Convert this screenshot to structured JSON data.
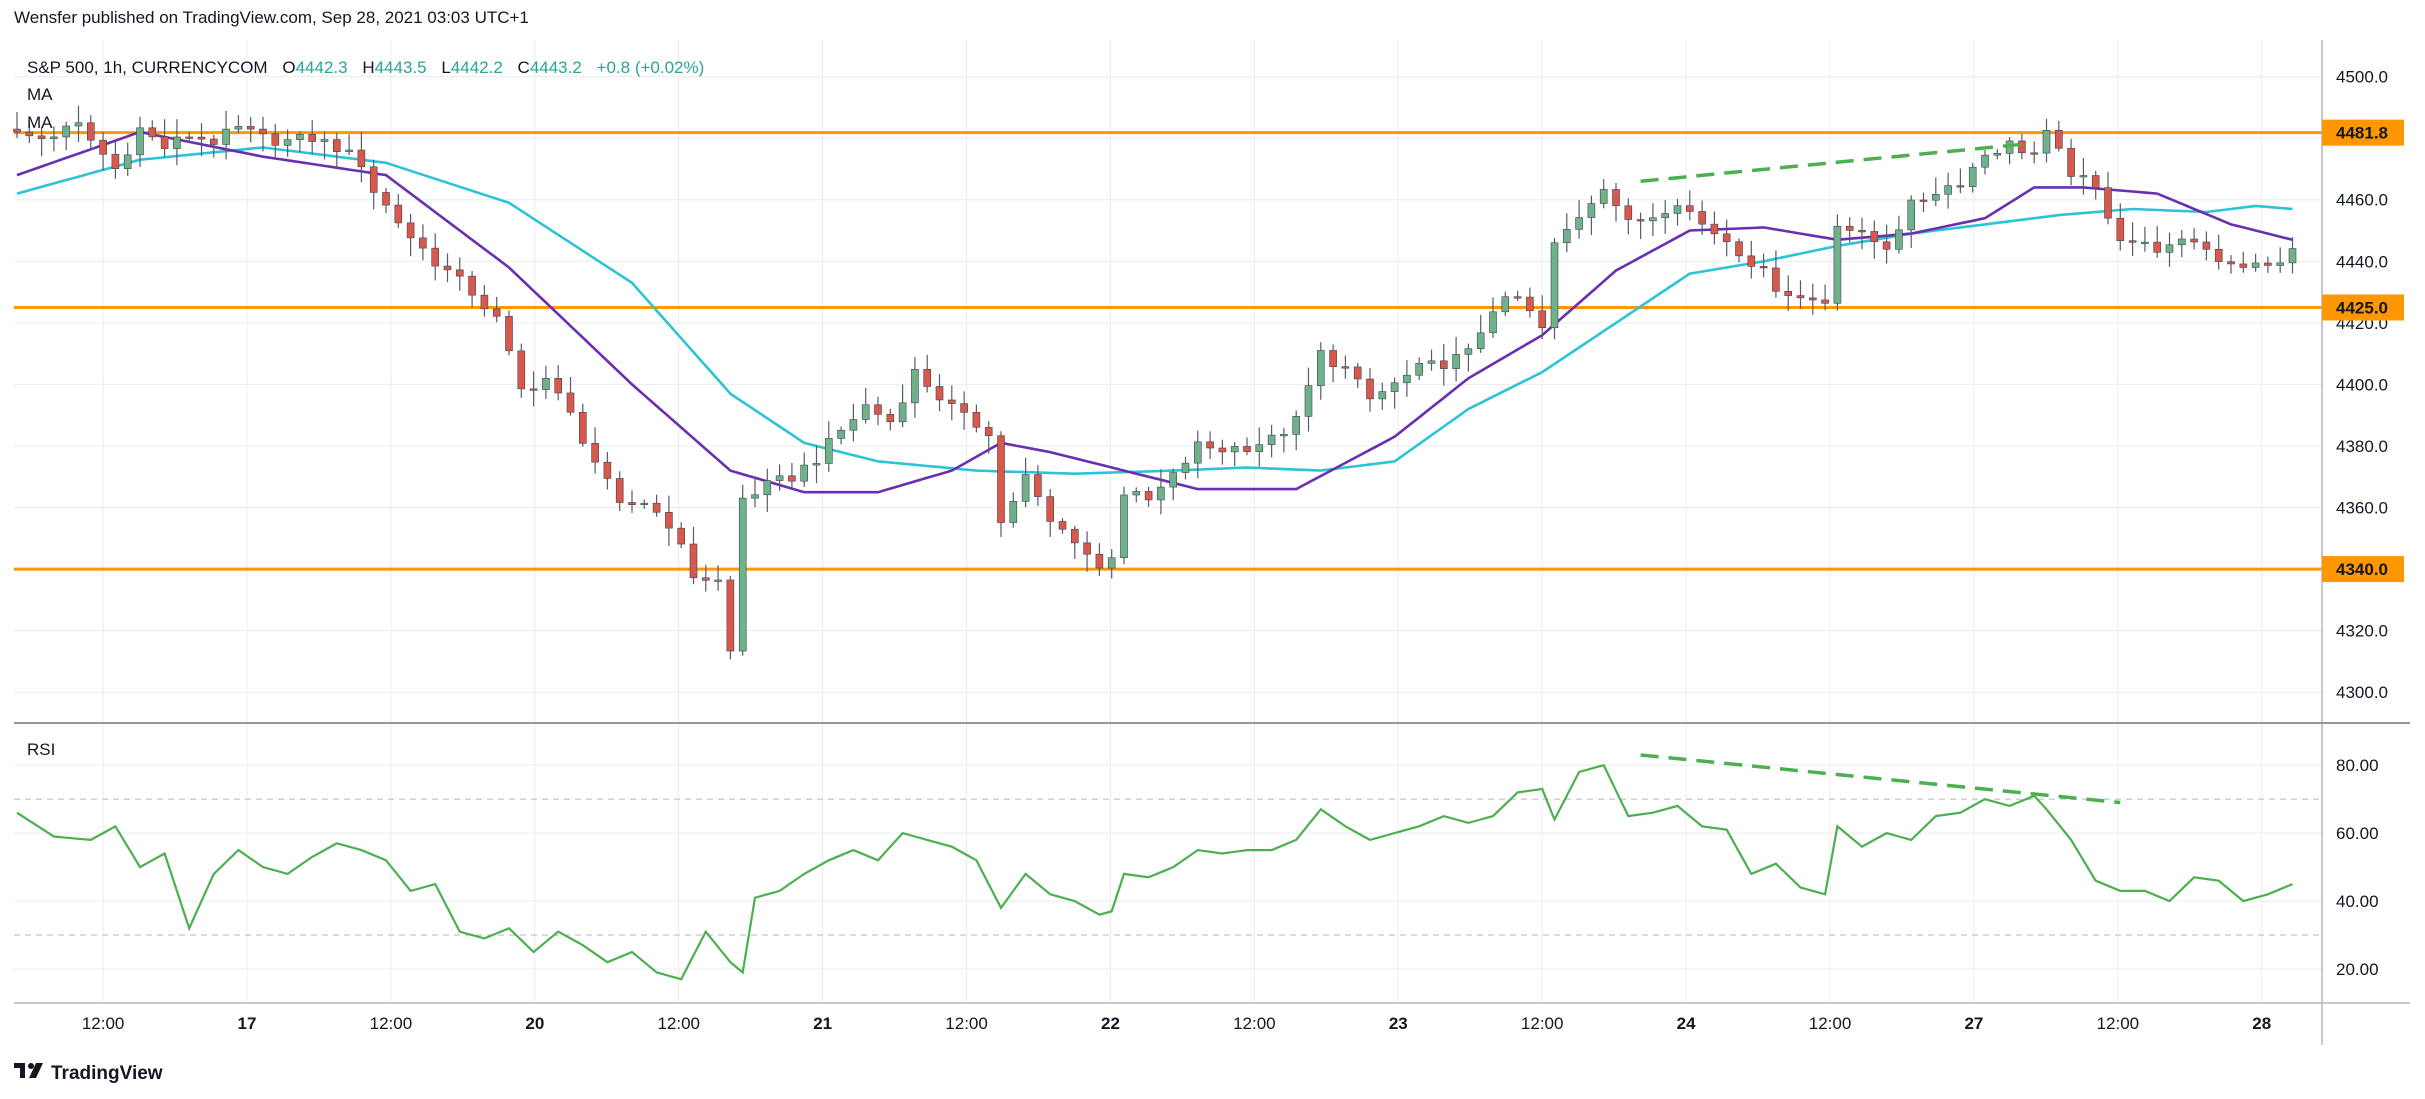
{
  "publisher_line": "Wensfer published on TradingView.com, Sep 28, 2021 03:03 UTC+1",
  "footer_brand": "TradingView",
  "header": {
    "symbol": "S&P 500, 1h, CURRENCYCOM",
    "o_label": "O",
    "o": "4442.3",
    "h_label": "H",
    "h": "4443.5",
    "l_label": "L",
    "l": "4442.2",
    "c_label": "C",
    "c": "4443.2",
    "change": "+0.8 (+0.02%)",
    "ma1": "MA",
    "ma2": "MA"
  },
  "rsi_label": "RSI",
  "colors": {
    "up": "#6fb28a",
    "down": "#d9584c",
    "wick": "#555c6a",
    "ma_fast": "#6a2fb0",
    "ma_slow": "#2cc3d6",
    "rsi": "#4caf50",
    "trend_dashed": "#4caf50",
    "level": "#ff9800",
    "grid": "#ececec"
  },
  "chart_data": [
    {
      "type": "candlestick",
      "symbol": "S&P 500, 1h, CURRENCYCOM",
      "x_tick_labels": [
        "12:00",
        "17",
        "12:00",
        "20",
        "12:00",
        "21",
        "12:00",
        "22",
        "12:00",
        "23",
        "12:00",
        "24",
        "12:00",
        "27",
        "12:00",
        "28"
      ],
      "bold_x_labels": [
        "17",
        "20",
        "21",
        "22",
        "23",
        "24",
        "27",
        "28"
      ],
      "y_tick_labels": [
        "4500.0",
        "4480.0",
        "4460.0",
        "4440.0",
        "4420.0",
        "4400.0",
        "4380.0",
        "4360.0",
        "4340.0",
        "4320.0",
        "4300.0"
      ],
      "ylim": [
        4290,
        4508
      ],
      "horizontal_levels": [
        {
          "value": 4481.8,
          "label": "4481.8"
        },
        {
          "value": 4425.0,
          "label": "4425.0"
        },
        {
          "value": 4340.0,
          "label": "4340.0"
        }
      ],
      "anchors": [
        [
          0,
          4481
        ],
        [
          2,
          4480
        ],
        [
          5,
          4484
        ],
        [
          8,
          4470
        ],
        [
          10,
          4483
        ],
        [
          12,
          4477
        ],
        [
          14,
          4481
        ],
        [
          16,
          4479
        ],
        [
          18,
          4483
        ],
        [
          20,
          4480
        ],
        [
          22,
          4479
        ],
        [
          24,
          4480
        ],
        [
          26,
          4477
        ],
        [
          28,
          4472
        ],
        [
          29,
          4463
        ],
        [
          32,
          4448
        ],
        [
          34,
          4440
        ],
        [
          37,
          4430
        ],
        [
          39,
          4421
        ],
        [
          41,
          4398
        ],
        [
          43,
          4402
        ],
        [
          45,
          4390
        ],
        [
          47,
          4375
        ],
        [
          49,
          4360
        ],
        [
          51,
          4362
        ],
        [
          53,
          4355
        ],
        [
          55,
          4338
        ],
        [
          57,
          4336
        ],
        [
          58,
          4313
        ],
        [
          59,
          4363
        ],
        [
          61,
          4367
        ],
        [
          63,
          4370
        ],
        [
          65,
          4376
        ],
        [
          67,
          4385
        ],
        [
          69,
          4393
        ],
        [
          71,
          4388
        ],
        [
          73,
          4404
        ],
        [
          75,
          4396
        ],
        [
          77,
          4389
        ],
        [
          79,
          4385
        ],
        [
          80,
          4355
        ],
        [
          82,
          4370
        ],
        [
          84,
          4355
        ],
        [
          86,
          4350
        ],
        [
          88,
          4340
        ],
        [
          89,
          4345
        ],
        [
          90,
          4365
        ],
        [
          92,
          4362
        ],
        [
          94,
          4370
        ],
        [
          96,
          4380
        ],
        [
          98,
          4379
        ],
        [
          100,
          4380
        ],
        [
          102,
          4382
        ],
        [
          104,
          4388
        ],
        [
          106,
          4410
        ],
        [
          108,
          4405
        ],
        [
          110,
          4395
        ],
        [
          112,
          4400
        ],
        [
          114,
          4405
        ],
        [
          116,
          4407
        ],
        [
          118,
          4410
        ],
        [
          120,
          4425
        ],
        [
          122,
          4428
        ],
        [
          124,
          4418
        ],
        [
          125,
          4445
        ],
        [
          127,
          4455
        ],
        [
          129,
          4465
        ],
        [
          131,
          4452
        ],
        [
          133,
          4455
        ],
        [
          135,
          4460
        ],
        [
          137,
          4452
        ],
        [
          139,
          4447
        ],
        [
          141,
          4440
        ],
        [
          143,
          4432
        ],
        [
          145,
          4428
        ],
        [
          147,
          4427
        ],
        [
          148,
          4453
        ],
        [
          150,
          4448
        ],
        [
          152,
          4445
        ],
        [
          154,
          4458
        ],
        [
          156,
          4463
        ],
        [
          158,
          4466
        ],
        [
          160,
          4475
        ],
        [
          162,
          4478
        ],
        [
          164,
          4475
        ],
        [
          165,
          4481
        ],
        [
          167,
          4469
        ],
        [
          169,
          4463
        ],
        [
          171,
          4448
        ],
        [
          173,
          4445
        ],
        [
          175,
          4444
        ],
        [
          177,
          4447
        ],
        [
          179,
          4441
        ],
        [
          181,
          4439
        ],
        [
          183,
          4438
        ],
        [
          185,
          4443
        ]
      ],
      "ma_fast": {
        "name": "MA",
        "values": [
          [
            0,
            4468
          ],
          [
            10,
            4482
          ],
          [
            20,
            4474
          ],
          [
            30,
            4468
          ],
          [
            40,
            4438
          ],
          [
            50,
            4400
          ],
          [
            58,
            4372
          ],
          [
            64,
            4365
          ],
          [
            70,
            4365
          ],
          [
            76,
            4372
          ],
          [
            80,
            4381
          ],
          [
            84,
            4378
          ],
          [
            90,
            4372
          ],
          [
            96,
            4366
          ],
          [
            104,
            4366
          ],
          [
            112,
            4383
          ],
          [
            118,
            4402
          ],
          [
            124,
            4416
          ],
          [
            130,
            4437
          ],
          [
            136,
            4450
          ],
          [
            142,
            4451
          ],
          [
            148,
            4447
          ],
          [
            154,
            4449
          ],
          [
            160,
            4454
          ],
          [
            164,
            4464
          ],
          [
            168,
            4464
          ],
          [
            174,
            4462
          ],
          [
            180,
            4452
          ],
          [
            185,
            4447
          ]
        ]
      },
      "ma_slow": {
        "name": "MA",
        "values": [
          [
            0,
            4462
          ],
          [
            10,
            4473
          ],
          [
            20,
            4477
          ],
          [
            30,
            4472
          ],
          [
            40,
            4459
          ],
          [
            50,
            4433
          ],
          [
            58,
            4397
          ],
          [
            64,
            4381
          ],
          [
            70,
            4375
          ],
          [
            78,
            4372
          ],
          [
            86,
            4371
          ],
          [
            94,
            4372
          ],
          [
            100,
            4373
          ],
          [
            106,
            4372
          ],
          [
            112,
            4375
          ],
          [
            118,
            4392
          ],
          [
            124,
            4404
          ],
          [
            130,
            4420
          ],
          [
            136,
            4436
          ],
          [
            142,
            4440
          ],
          [
            148,
            4445
          ],
          [
            154,
            4449
          ],
          [
            160,
            4452
          ],
          [
            166,
            4455
          ],
          [
            172,
            4457
          ],
          [
            178,
            4456
          ],
          [
            182,
            4458
          ],
          [
            185,
            4457
          ]
        ]
      },
      "trendline": {
        "x": [
          132,
          163
        ],
        "y": [
          4466,
          4478
        ]
      }
    },
    {
      "type": "line",
      "name": "RSI",
      "y_tick_labels": [
        "80.00",
        "60.00",
        "40.00",
        "20.00"
      ],
      "ylim": [
        10,
        88
      ],
      "reference_levels": [
        70,
        30
      ],
      "values": [
        [
          0,
          66
        ],
        [
          3,
          59
        ],
        [
          6,
          58
        ],
        [
          8,
          62
        ],
        [
          10,
          50
        ],
        [
          12,
          54
        ],
        [
          14,
          32
        ],
        [
          16,
          48
        ],
        [
          18,
          55
        ],
        [
          20,
          50
        ],
        [
          22,
          48
        ],
        [
          24,
          53
        ],
        [
          26,
          57
        ],
        [
          28,
          55
        ],
        [
          30,
          52
        ],
        [
          32,
          43
        ],
        [
          34,
          45
        ],
        [
          36,
          31
        ],
        [
          38,
          29
        ],
        [
          40,
          32
        ],
        [
          42,
          25
        ],
        [
          44,
          31
        ],
        [
          46,
          27
        ],
        [
          48,
          22
        ],
        [
          50,
          25
        ],
        [
          52,
          19
        ],
        [
          54,
          17
        ],
        [
          56,
          31
        ],
        [
          58,
          22
        ],
        [
          59,
          19
        ],
        [
          60,
          41
        ],
        [
          62,
          43
        ],
        [
          64,
          48
        ],
        [
          66,
          52
        ],
        [
          68,
          55
        ],
        [
          70,
          52
        ],
        [
          72,
          60
        ],
        [
          74,
          58
        ],
        [
          76,
          56
        ],
        [
          78,
          52
        ],
        [
          80,
          38
        ],
        [
          82,
          48
        ],
        [
          84,
          42
        ],
        [
          86,
          40
        ],
        [
          88,
          36
        ],
        [
          89,
          37
        ],
        [
          90,
          48
        ],
        [
          92,
          47
        ],
        [
          94,
          50
        ],
        [
          96,
          55
        ],
        [
          98,
          54
        ],
        [
          100,
          55
        ],
        [
          102,
          55
        ],
        [
          104,
          58
        ],
        [
          106,
          67
        ],
        [
          108,
          62
        ],
        [
          110,
          58
        ],
        [
          112,
          60
        ],
        [
          114,
          62
        ],
        [
          116,
          65
        ],
        [
          118,
          63
        ],
        [
          120,
          65
        ],
        [
          122,
          72
        ],
        [
          124,
          73
        ],
        [
          125,
          64
        ],
        [
          127,
          78
        ],
        [
          129,
          80
        ],
        [
          131,
          65
        ],
        [
          133,
          66
        ],
        [
          135,
          68
        ],
        [
          137,
          62
        ],
        [
          139,
          61
        ],
        [
          141,
          48
        ],
        [
          143,
          51
        ],
        [
          145,
          44
        ],
        [
          147,
          42
        ],
        [
          148,
          62
        ],
        [
          150,
          56
        ],
        [
          152,
          60
        ],
        [
          154,
          58
        ],
        [
          156,
          65
        ],
        [
          158,
          66
        ],
        [
          160,
          70
        ],
        [
          162,
          68
        ],
        [
          164,
          71
        ],
        [
          165,
          67
        ],
        [
          167,
          58
        ],
        [
          169,
          46
        ],
        [
          171,
          43
        ],
        [
          173,
          43
        ],
        [
          175,
          40
        ],
        [
          177,
          47
        ],
        [
          179,
          46
        ],
        [
          181,
          40
        ],
        [
          183,
          42
        ],
        [
          185,
          45
        ]
      ],
      "trendline": {
        "x": [
          132,
          171
        ],
        "y": [
          83,
          69
        ]
      }
    }
  ]
}
